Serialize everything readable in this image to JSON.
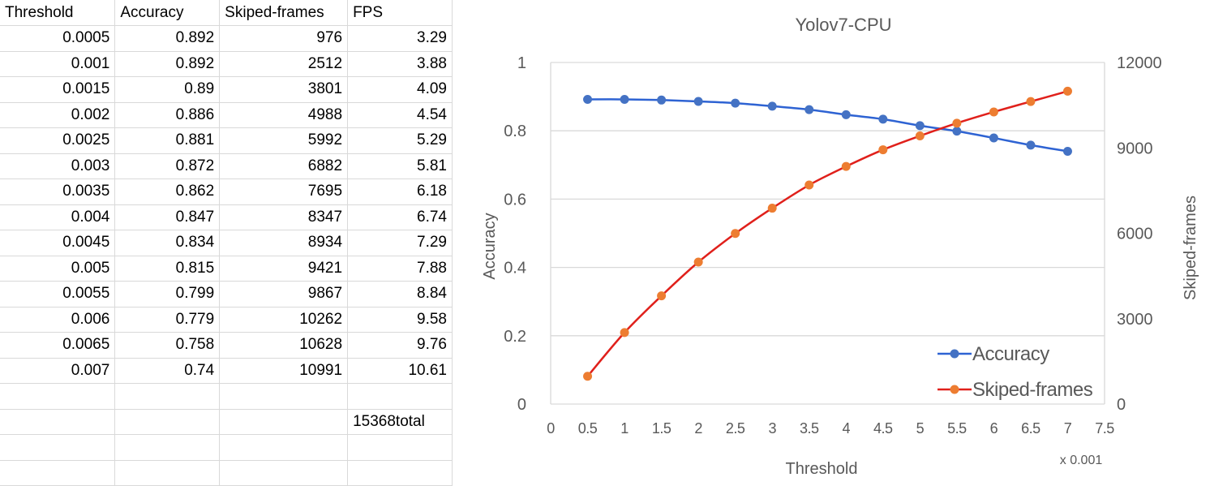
{
  "sheet": {
    "headers": [
      "Threshold",
      "Accuracy",
      "Skiped-frames",
      "FPS"
    ],
    "rows": [
      [
        "0.0005",
        "0.892",
        "976",
        "3.29"
      ],
      [
        "0.001",
        "0.892",
        "2512",
        "3.88"
      ],
      [
        "0.0015",
        "0.89",
        "3801",
        "4.09"
      ],
      [
        "0.002",
        "0.886",
        "4988",
        "4.54"
      ],
      [
        "0.0025",
        "0.881",
        "5992",
        "5.29"
      ],
      [
        "0.003",
        "0.872",
        "6882",
        "5.81"
      ],
      [
        "0.0035",
        "0.862",
        "7695",
        "6.18"
      ],
      [
        "0.004",
        "0.847",
        "8347",
        "6.74"
      ],
      [
        "0.0045",
        "0.834",
        "8934",
        "7.29"
      ],
      [
        "0.005",
        "0.815",
        "9421",
        "7.88"
      ],
      [
        "0.0055",
        "0.799",
        "9867",
        "8.84"
      ],
      [
        "0.006",
        "0.779",
        "10262",
        "9.58"
      ],
      [
        "0.0065",
        "0.758",
        "10628",
        "9.76"
      ],
      [
        "0.007",
        "0.74",
        "10991",
        "10.61"
      ]
    ],
    "total_note": "15368total"
  },
  "chart_data": {
    "type": "line",
    "title": "Yolov7-CPU",
    "xlabel": "Threshold",
    "x_multiplier_label": "x 0.001",
    "ylabel_left": "Accuracy",
    "ylabel_right": "Skiped-frames",
    "x": [
      0.5,
      1,
      1.5,
      2,
      2.5,
      3,
      3.5,
      4,
      4.5,
      5,
      5.5,
      6,
      6.5,
      7
    ],
    "xlim": [
      0,
      7.5
    ],
    "x_ticks": [
      "0",
      "0.5",
      "1",
      "1.5",
      "2",
      "2.5",
      "3",
      "3.5",
      "4",
      "4.5",
      "5",
      "5.5",
      "6",
      "6.5",
      "7",
      "7.5"
    ],
    "ylim_left": [
      0,
      1
    ],
    "y_ticks_left": [
      "0",
      "0.2",
      "0.4",
      "0.6",
      "0.8",
      "1"
    ],
    "ylim_right": [
      0,
      12000
    ],
    "y_ticks_right": [
      "0",
      "3000",
      "6000",
      "9000",
      "12000"
    ],
    "grid": true,
    "legend_position": "bottom-right",
    "series": [
      {
        "name": "Accuracy",
        "axis": "left",
        "line_color": "#2e63d3",
        "marker_color": "#4472c4",
        "values": [
          0.892,
          0.892,
          0.89,
          0.886,
          0.881,
          0.872,
          0.862,
          0.847,
          0.834,
          0.815,
          0.799,
          0.779,
          0.758,
          0.74
        ]
      },
      {
        "name": "Skiped-frames",
        "axis": "right",
        "line_color": "#e0201b",
        "marker_color": "#ed7d31",
        "values": [
          976,
          2512,
          3801,
          4988,
          5992,
          6882,
          7695,
          8347,
          8934,
          9421,
          9867,
          10262,
          10628,
          10991
        ]
      }
    ]
  }
}
